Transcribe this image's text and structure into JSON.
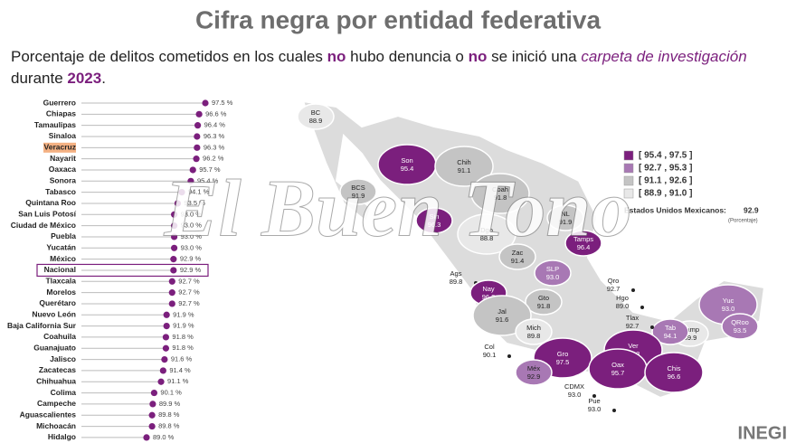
{
  "chart_data": {
    "type": "lollipop",
    "title": "Cifra negra por entidad federativa",
    "subtitle_parts": [
      "Porcentaje de delitos cometidos en los cuales ",
      "no",
      " hubo denuncia o ",
      "no",
      " se inició una ",
      "carpeta de investigación",
      "durante ",
      "2023",
      "."
    ],
    "categories": [
      "Guerrero",
      "Chiapas",
      "Tamaulipas",
      "Sinaloa",
      "Veracruz",
      "Nayarit",
      "Oaxaca",
      "Sonora",
      "Tabasco",
      "Quintana Roo",
      "San Luis Potosí",
      "Ciudad de México",
      "Puebla",
      "Yucatán",
      "México",
      "Nacional",
      "Tlaxcala",
      "Morelos",
      "Querétaro",
      "Nuevo León",
      "Baja California Sur",
      "Coahuila",
      "Guanajuato",
      "Jalisco",
      "Zacatecas",
      "Chihuahua",
      "Colima",
      "Campeche",
      "Aguascalientes",
      "Michoacán",
      "Hidalgo"
    ],
    "values": [
      97.5,
      96.6,
      96.4,
      96.3,
      96.3,
      96.2,
      95.7,
      95.4,
      94.1,
      93.5,
      93.0,
      93.0,
      93.0,
      93.0,
      92.9,
      92.9,
      92.7,
      92.7,
      92.7,
      91.9,
      91.9,
      91.8,
      91.8,
      91.6,
      91.4,
      91.1,
      90.1,
      89.9,
      89.8,
      89.8,
      89.0
    ],
    "value_labels": [
      "97.5 %",
      "96.6 %",
      "96.4 %",
      "96.3 %",
      "96.3 %",
      "96.2 %",
      "95.7 %",
      "95.4 %",
      "94.1 %",
      "93.5 %",
      "93.0 %",
      "93.0 %",
      "93.0 %",
      "93.0 %",
      "92.9 %",
      "92.9 %",
      "92.7 %",
      "92.7 %",
      "92.7 %",
      "91.9 %",
      "91.9 %",
      "91.8 %",
      "91.8 %",
      "91.6 %",
      "91.4 %",
      "91.1 %",
      "90.1 %",
      "89.9 %",
      "89.8 %",
      "89.8 %",
      "89.0 %"
    ],
    "color": "#7b1f7d",
    "highlight_index": 4,
    "boxed_index": 15,
    "legend": [
      {
        "label": "[ 95.4 , 97.5 ]",
        "color": "#7b1f7d"
      },
      {
        "label": "[ 92.7 , 95.3 ]",
        "color": "#a878b4"
      },
      {
        "label": "[ 91.1 , 92.6 ]",
        "color": "#c4c4c4"
      },
      {
        "label": "[ 88.9 , 91.0 ]",
        "color": "#e8e8e8"
      }
    ],
    "national_label": "Estados Unidos Mexicanos:",
    "national_value": "92.9",
    "national_unit": "(Porcentaje)",
    "map": [
      {
        "abbr": "BC",
        "value": "88.9",
        "bin": 3
      },
      {
        "abbr": "Son",
        "value": "95.4",
        "bin": 0
      },
      {
        "abbr": "Chih",
        "value": "91.1",
        "bin": 2
      },
      {
        "abbr": "BCS",
        "value": "91.9",
        "bin": 2
      },
      {
        "abbr": "Sin",
        "value": "96.3",
        "bin": 0
      },
      {
        "abbr": "Coah",
        "value": "91.8",
        "bin": 2
      },
      {
        "abbr": "NL",
        "value": "91.9",
        "bin": 2
      },
      {
        "abbr": "Dgo",
        "value": "88.8",
        "bin": 3
      },
      {
        "abbr": "Tamps",
        "value": "96.4",
        "bin": 0
      },
      {
        "abbr": "Zac",
        "value": "91.4",
        "bin": 2
      },
      {
        "abbr": "SLP",
        "value": "93.0",
        "bin": 1
      },
      {
        "abbr": "Ags",
        "value": "89.8",
        "bin": 3
      },
      {
        "abbr": "Nay",
        "value": "96.2",
        "bin": 0
      },
      {
        "abbr": "Qro",
        "value": "92.7",
        "bin": 1
      },
      {
        "abbr": "Hgo",
        "value": "89.0",
        "bin": 3
      },
      {
        "abbr": "Gto",
        "value": "91.8",
        "bin": 2
      },
      {
        "abbr": "Jal",
        "value": "91.6",
        "bin": 2
      },
      {
        "abbr": "Yuc",
        "value": "93.0",
        "bin": 1
      },
      {
        "abbr": "QRoo",
        "value": "93.5",
        "bin": 1
      },
      {
        "abbr": "Camp",
        "value": "89.9",
        "bin": 3
      },
      {
        "abbr": "Tab",
        "value": "94.1",
        "bin": 1
      },
      {
        "abbr": "Tlax",
        "value": "92.7",
        "bin": 1
      },
      {
        "abbr": "Mor",
        "value": "92.7",
        "bin": 1
      },
      {
        "abbr": "Mich",
        "value": "89.8",
        "bin": 3
      },
      {
        "abbr": "Col",
        "value": "90.1",
        "bin": 3
      },
      {
        "abbr": "Ver",
        "value": "96.3",
        "bin": 0
      },
      {
        "abbr": "Gro",
        "value": "97.5",
        "bin": 0
      },
      {
        "abbr": "Oax",
        "value": "95.7",
        "bin": 0
      },
      {
        "abbr": "Chis",
        "value": "96.6",
        "bin": 0
      },
      {
        "abbr": "Méx",
        "value": "92.9",
        "bin": 1
      },
      {
        "abbr": "CDMX",
        "value": "93.0",
        "bin": 1
      },
      {
        "abbr": "Pue",
        "value": "93.0",
        "bin": 1
      }
    ],
    "watermark": "El Buen Tono",
    "logo": "INEGI"
  }
}
